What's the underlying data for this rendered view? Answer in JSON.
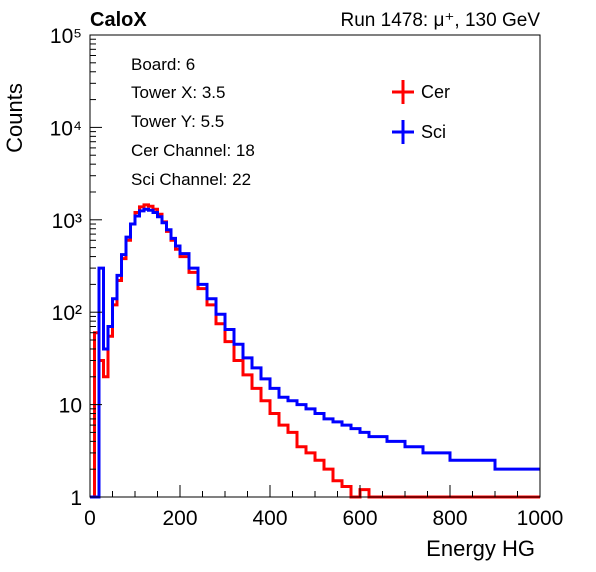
{
  "header": {
    "left": "CaloX",
    "right": "Run 1478:   μ⁺, 130 GeV"
  },
  "info_box": {
    "lines": [
      "Board: 6",
      "Tower X: 3.5",
      "Tower Y: 5.5",
      "Cer Channel: 18",
      "Sci Channel: 22"
    ]
  },
  "chart_data": {
    "type": "line",
    "title": "",
    "xlabel": "Energy HG",
    "ylabel": "Counts",
    "xlim": [
      0,
      1000
    ],
    "ylim": [
      1,
      100000
    ],
    "y_scale": "log",
    "grid": false,
    "legend_position": "top-right",
    "x_ticks": [
      0,
      200,
      400,
      600,
      800,
      1000
    ],
    "x_tick_labels": [
      "0",
      "200",
      "400",
      "600",
      "800",
      "1000"
    ],
    "y_ticks": [
      1,
      10,
      100,
      1000,
      10000,
      100000
    ],
    "y_tick_labels": [
      "1",
      "10",
      "10²",
      "10³",
      "10⁴",
      "10⁵"
    ],
    "series": [
      {
        "name": "Cer",
        "color": "#ff0000",
        "x": [
          0,
          10,
          20,
          30,
          40,
          50,
          60,
          70,
          80,
          90,
          100,
          110,
          120,
          130,
          140,
          150,
          160,
          170,
          180,
          190,
          200,
          220,
          240,
          260,
          280,
          300,
          320,
          340,
          360,
          380,
          400,
          420,
          440,
          460,
          480,
          500,
          520,
          540,
          560,
          580,
          600,
          620,
          640,
          660,
          680,
          700,
          720,
          740,
          760,
          780,
          800,
          850,
          900,
          950,
          1000
        ],
        "y": [
          1,
          60,
          30,
          20,
          55,
          120,
          220,
          380,
          600,
          900,
          1200,
          1380,
          1450,
          1400,
          1300,
          1150,
          950,
          750,
          600,
          480,
          400,
          270,
          180,
          120,
          75,
          48,
          30,
          21,
          15,
          11,
          8,
          6,
          5,
          3.5,
          3,
          2.5,
          2,
          1.5,
          1.3,
          1,
          1.2,
          1,
          1,
          1,
          1,
          1,
          1,
          1,
          1,
          1,
          1,
          1,
          1,
          1,
          1
        ]
      },
      {
        "name": "Sci",
        "color": "#0000ff",
        "x": [
          0,
          10,
          20,
          30,
          40,
          50,
          60,
          70,
          80,
          90,
          100,
          110,
          120,
          130,
          140,
          150,
          160,
          170,
          180,
          190,
          200,
          220,
          240,
          260,
          280,
          300,
          320,
          340,
          360,
          380,
          400,
          420,
          440,
          460,
          480,
          500,
          520,
          540,
          560,
          580,
          600,
          620,
          640,
          660,
          680,
          700,
          720,
          740,
          760,
          780,
          800,
          850,
          900,
          950,
          1000
        ],
        "y": [
          1,
          1,
          300,
          40,
          70,
          140,
          250,
          420,
          650,
          900,
          1100,
          1250,
          1300,
          1270,
          1200,
          1080,
          930,
          780,
          630,
          520,
          430,
          300,
          200,
          140,
          95,
          65,
          45,
          32,
          25,
          19,
          15,
          12,
          11,
          10,
          9,
          8,
          7,
          6.5,
          6,
          5.5,
          5,
          4.5,
          4.5,
          4,
          4,
          3.5,
          3.5,
          3,
          3,
          3,
          2.5,
          2.5,
          2,
          2,
          2
        ]
      }
    ]
  }
}
